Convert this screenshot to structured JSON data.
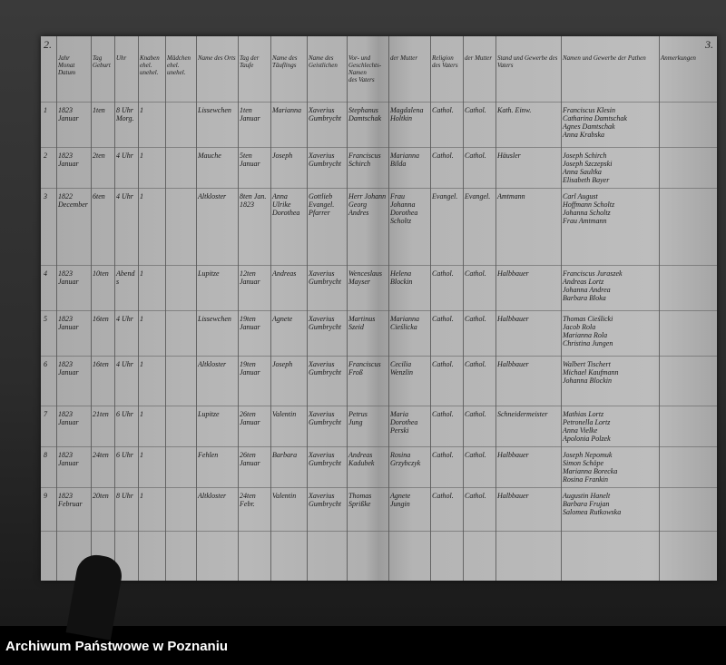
{
  "document": {
    "page_left": "2.",
    "page_right": "3.",
    "headers": [
      "Jahr\nMonat\nDatum",
      "Tag\nGeburt",
      "Uhr",
      "Knaben\nehel. unehel.",
      "Mädchen\nehel. unehel.",
      "Name des Orts",
      "Tag der Taufe",
      "Name des Täuflings",
      "Name des Geistlichen",
      "Vor- und Geschlechts-Namen\ndes Vaters",
      "der Mutter",
      "Religion\ndes Vaters",
      "der Mutter",
      "Stand und Gewerbe des Vaters",
      "Namen und Gewerbe der Pathen",
      "Anmerkungen"
    ],
    "rows": [
      {
        "no": "1",
        "date": "1823\nJanuar",
        "day": "1ten",
        "time": "8 Uhr\nMorg.",
        "count": "1",
        "place": "Lissewchen",
        "baptism": "1ten\nJanuar",
        "child": "Marianna",
        "priest": "Xaverius\nGumbrycht",
        "father": "Stephanus\nDamtschak",
        "mother": "Magdalena\nHoltkin",
        "rel_f": "Cathol.",
        "rel_m": "Cathol.",
        "status": "Kath. Einw.",
        "godparents": "Franciscus Klesin\nCatharina Damtschak\nAgnes Damtschak\nAnna Krabska"
      },
      {
        "no": "2",
        "date": "1823\nJanuar",
        "day": "2ten",
        "time": "4 Uhr",
        "count": "1",
        "place": "Mauche",
        "baptism": "5ten\nJanuar",
        "child": "Joseph",
        "priest": "Xaverius\nGumbrycht",
        "father": "Franciscus\nSchirch",
        "mother": "Marianna\nBilda",
        "rel_f": "Cathol.",
        "rel_m": "Cathol.",
        "status": "Häusler",
        "godparents": "Joseph Schirch\nJoseph Szczepski\nAnna Saultka\nElisabeth Bayer"
      },
      {
        "no": "3",
        "date": "1822\nDecember",
        "day": "6ten",
        "time": "4 Uhr",
        "count": "1",
        "place": "Altkloster",
        "baptism": "8ten Jan.\n1823",
        "child": "Anna\nUlrike\nDorothea",
        "priest": "Gottlieb\nEvangel. Pfarrer",
        "father": "Herr Johann\nGeorg Andres",
        "mother": "Frau Johanna\nDorothea\nScholtz",
        "rel_f": "Evangel.",
        "rel_m": "Evangel.",
        "status": "Amtmann",
        "godparents": "Carl August\nHoffmann Scholtz\nJohanna Scholtz\nFrau Amtmann"
      },
      {
        "no": "4",
        "date": "1823\nJanuar",
        "day": "10ten",
        "time": "Abends",
        "count": "1",
        "place": "Lupitze",
        "baptism": "12ten\nJanuar",
        "child": "Andreas",
        "priest": "Xaverius\nGumbrycht",
        "father": "Wenceslaus\nMayser",
        "mother": "Helena\nBlockin",
        "rel_f": "Cathol.",
        "rel_m": "Cathol.",
        "status": "Halbbauer",
        "godparents": "Franciscus Juraszek\nAndreas Lortz\nJohanna Andrea\nBarbara Bloka"
      },
      {
        "no": "5",
        "date": "1823\nJanuar",
        "day": "16ten",
        "time": "4 Uhr",
        "count": "1",
        "place": "Lissewchen",
        "baptism": "19ten\nJanuar",
        "child": "Agnete",
        "priest": "Xaverius\nGumbrycht",
        "father": "Martinus\nSzeid",
        "mother": "Marianna\nCieślicka",
        "rel_f": "Cathol.",
        "rel_m": "Cathol.",
        "status": "Halbbauer",
        "godparents": "Thomas Cieślicki\nJacob Rola\nMarianna Rola\nChristina Jungen"
      },
      {
        "no": "6",
        "date": "1823\nJanuar",
        "day": "16ten",
        "time": "4 Uhr",
        "count": "1",
        "place": "Altkloster",
        "baptism": "19ten\nJanuar",
        "child": "Joseph",
        "priest": "Xaverius\nGumbrycht",
        "father": "Franciscus\nFroß",
        "mother": "Cecilia\nWenzlin",
        "rel_f": "Cathol.",
        "rel_m": "Cathol.",
        "status": "Halbbauer",
        "godparents": "Walbert Tischert\nMichael Kaufmann\nJohanna Blockin"
      },
      {
        "no": "7",
        "date": "1823\nJanuar",
        "day": "21ten",
        "time": "6 Uhr",
        "count": "1",
        "place": "Lupitze",
        "baptism": "26ten\nJanuar",
        "child": "Valentin",
        "priest": "Xaverius\nGumbrycht",
        "father": "Petrus\nJung",
        "mother": "Maria Dorothea\nPerski",
        "rel_f": "Cathol.",
        "rel_m": "Cathol.",
        "status": "Schneidermeister",
        "godparents": "Mathias Lortz\nPetronella Lortz\nAnna Vielke\nApolonia Polzek"
      },
      {
        "no": "8",
        "date": "1823\nJanuar",
        "day": "24ten",
        "time": "6 Uhr",
        "count": "1",
        "place": "Fehlen",
        "baptism": "26ten\nJanuar",
        "child": "Barbara",
        "priest": "Xaverius\nGumbrycht",
        "father": "Andreas\nKadubek",
        "mother": "Rosina\nGrzybczyk",
        "rel_f": "Cathol.",
        "rel_m": "Cathol.",
        "status": "Halbbauer",
        "godparents": "Joseph Nepomuk\nSimon Schöpe\nMarianna Borecka\nRosina Frankin"
      },
      {
        "no": "9",
        "date": "1823\nFebruar",
        "day": "20ten",
        "time": "8 Uhr",
        "count": "1",
        "place": "Altkloster",
        "baptism": "24ten\nFebr.",
        "child": "Valentin",
        "priest": "Xaverius\nGumbrycht",
        "father": "Thomas\nSprißke",
        "mother": "Agnete\nJungin",
        "rel_f": "Cathol.",
        "rel_m": "Cathol.",
        "status": "Halbbauer",
        "godparents": "Augustin Hanelt\nBarbara Frujan\nSalomea Rutkowska"
      }
    ]
  },
  "footer": {
    "text": "Archiwum Państwowe w Poznaniu"
  }
}
